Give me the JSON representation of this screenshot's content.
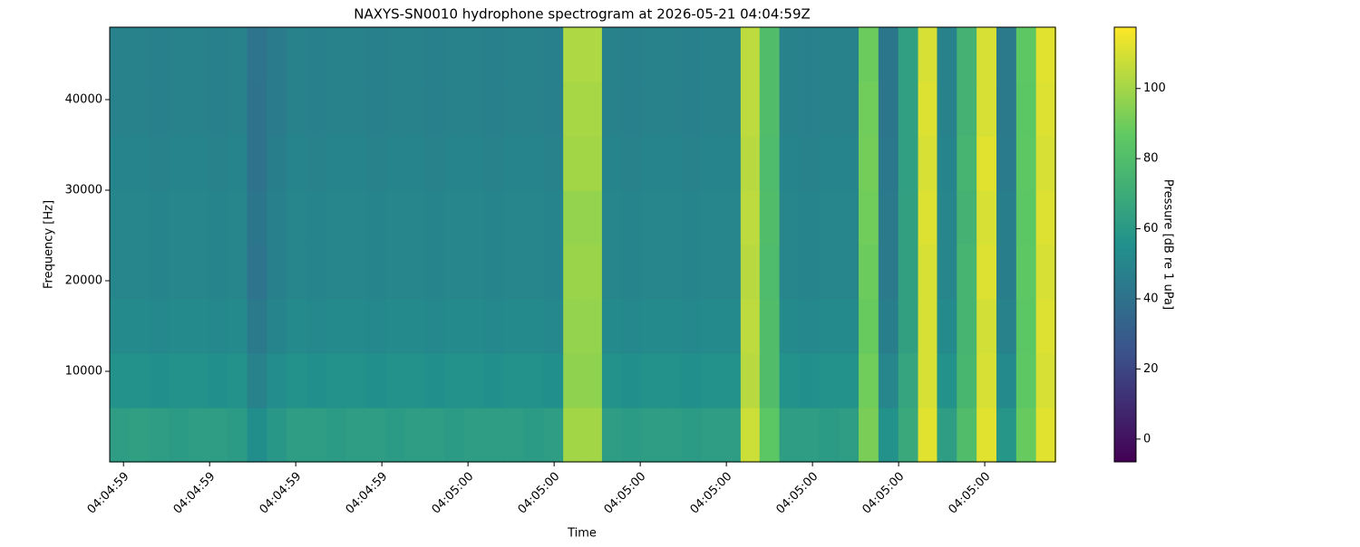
{
  "chart_data": {
    "type": "spectrogram",
    "title": "NAXYS-SN0010 hydrophone spectrogram at 2026-05-21 04:04:59Z",
    "x_label": "Time",
    "y_label": "Frequency [Hz]",
    "colorbar_label": "Pressure [dB re 1 uPa]",
    "colormap": "viridis",
    "xlim": [
      59.584,
      60.682
    ],
    "ylim": [
      0,
      48000
    ],
    "clim": [
      -6.5,
      117.5
    ],
    "xticks": [
      {
        "value": 59.6,
        "label": "04:04:59"
      },
      {
        "value": 59.7,
        "label": "04:04:59"
      },
      {
        "value": 59.8,
        "label": "04:04:59"
      },
      {
        "value": 59.9,
        "label": "04:04:59"
      },
      {
        "value": 60.0,
        "label": "04:05:00"
      },
      {
        "value": 60.1,
        "label": "04:05:00"
      },
      {
        "value": 60.2,
        "label": "04:05:00"
      },
      {
        "value": 60.3,
        "label": "04:05:00"
      },
      {
        "value": 60.4,
        "label": "04:05:00"
      },
      {
        "value": 60.5,
        "label": "04:05:00"
      },
      {
        "value": 60.6,
        "label": "04:05:00"
      }
    ],
    "yticks": [
      10000,
      20000,
      30000,
      40000
    ],
    "cticks": [
      0,
      20,
      40,
      60,
      80,
      100
    ],
    "x": [
      59.595,
      59.618,
      59.641,
      59.664,
      59.687,
      59.71,
      59.732,
      59.755,
      59.778,
      59.801,
      59.824,
      59.847,
      59.87,
      59.893,
      59.916,
      59.938,
      59.961,
      59.984,
      60.007,
      60.03,
      60.053,
      60.076,
      60.099,
      60.122,
      60.144,
      60.167,
      60.19,
      60.213,
      60.236,
      60.259,
      60.282,
      60.305,
      60.328,
      60.35,
      60.373,
      60.396,
      60.419,
      60.442,
      60.465,
      60.488,
      60.511,
      60.534,
      60.556,
      60.579,
      60.602,
      60.625,
      60.648,
      60.671
    ],
    "y": [
      3000,
      9000,
      15000,
      21000,
      27000,
      33000,
      39000,
      45000
    ],
    "values": [
      [
        62,
        63,
        62,
        61,
        62,
        62,
        61,
        54,
        59,
        62,
        62,
        61,
        62,
        62,
        61,
        62,
        62,
        61,
        62,
        62,
        62,
        61,
        62,
        100,
        100,
        62,
        61,
        62,
        62,
        61,
        62,
        62,
        108,
        85,
        62,
        62,
        61,
        62,
        92,
        56,
        68,
        112,
        62,
        80,
        112,
        58,
        88,
        112
      ],
      [
        56,
        56,
        55,
        56,
        56,
        55,
        56,
        48,
        53,
        56,
        55,
        56,
        56,
        55,
        56,
        56,
        55,
        56,
        56,
        55,
        56,
        56,
        55,
        96,
        96,
        56,
        55,
        56,
        56,
        55,
        56,
        56,
        104,
        80,
        56,
        55,
        56,
        56,
        90,
        50,
        66,
        110,
        56,
        76,
        110,
        52,
        86,
        110
      ],
      [
        52,
        52,
        51,
        52,
        52,
        51,
        52,
        44,
        49,
        52,
        51,
        52,
        52,
        51,
        52,
        52,
        51,
        52,
        52,
        51,
        52,
        52,
        51,
        97,
        97,
        52,
        51,
        52,
        52,
        51,
        52,
        52,
        105,
        80,
        52,
        51,
        52,
        52,
        88,
        46,
        64,
        110,
        52,
        75,
        109,
        48,
        85,
        111
      ],
      [
        50,
        50,
        49,
        50,
        50,
        49,
        50,
        41,
        47,
        50,
        49,
        50,
        50,
        49,
        50,
        50,
        49,
        50,
        50,
        49,
        50,
        50,
        49,
        98,
        98,
        50,
        49,
        50,
        50,
        49,
        50,
        50,
        104,
        79,
        50,
        49,
        50,
        50,
        89,
        44,
        64,
        110,
        50,
        75,
        111,
        46,
        86,
        110
      ],
      [
        50,
        50,
        49,
        50,
        50,
        49,
        50,
        42,
        47,
        50,
        49,
        50,
        50,
        49,
        50,
        50,
        49,
        50,
        50,
        49,
        50,
        50,
        49,
        97,
        97,
        50,
        49,
        50,
        50,
        49,
        50,
        50,
        105,
        80,
        50,
        49,
        50,
        50,
        90,
        44,
        64,
        111,
        50,
        74,
        110,
        46,
        85,
        111
      ],
      [
        49,
        49,
        48,
        49,
        49,
        48,
        49,
        40,
        46,
        49,
        48,
        49,
        49,
        48,
        49,
        49,
        48,
        49,
        49,
        48,
        49,
        49,
        48,
        100,
        100,
        49,
        48,
        49,
        49,
        48,
        49,
        49,
        104,
        79,
        49,
        48,
        49,
        49,
        91,
        43,
        63,
        110,
        49,
        75,
        112,
        45,
        86,
        110
      ],
      [
        48,
        48,
        47,
        48,
        48,
        47,
        48,
        40,
        45,
        48,
        47,
        48,
        48,
        47,
        48,
        48,
        47,
        48,
        48,
        47,
        48,
        48,
        47,
        101,
        101,
        48,
        47,
        48,
        48,
        47,
        48,
        48,
        105,
        80,
        48,
        47,
        48,
        48,
        90,
        42,
        63,
        111,
        48,
        74,
        110,
        44,
        85,
        111
      ],
      [
        48,
        48,
        47,
        48,
        48,
        47,
        48,
        41,
        45,
        48,
        47,
        48,
        48,
        47,
        48,
        48,
        47,
        48,
        48,
        47,
        48,
        48,
        47,
        102,
        102,
        48,
        47,
        48,
        48,
        47,
        48,
        48,
        105,
        80,
        48,
        47,
        48,
        48,
        89,
        42,
        63,
        110,
        48,
        74,
        110,
        44,
        86,
        112
      ]
    ]
  }
}
